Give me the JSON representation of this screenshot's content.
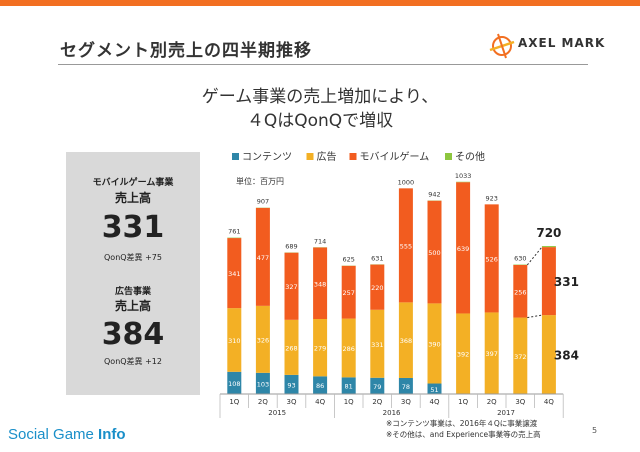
{
  "slide": {
    "title": "セグメント別売上の四半期推移",
    "brand": "AXEL MARK",
    "headline_line1": "ゲーム事業の売上増加により、",
    "headline_line2": "４QはQonQで増収",
    "page_number": "5",
    "footer_logo_part1": "Social Game ",
    "footer_logo_part2": "Info"
  },
  "summary": {
    "game_label_1": "モバイルゲーム事業",
    "game_label_2": "売上高",
    "game_value": "331",
    "game_diff": "QonQ差異 +75",
    "ad_label_1": "広告事業",
    "ad_label_2": "売上高",
    "ad_value": "384",
    "ad_diff": "QonQ差異 +12"
  },
  "colors": {
    "accent": "#f26f21",
    "contents": "#2e86a8",
    "ads": "#f3b025",
    "mobile_game": "#f25c1f",
    "other": "#8dc63f"
  },
  "chart_data": {
    "type": "bar",
    "stacked": true,
    "unit_label": "単位：百万円",
    "categories": [
      "1Q",
      "2Q",
      "3Q",
      "4Q",
      "1Q",
      "2Q",
      "3Q",
      "4Q",
      "1Q",
      "2Q",
      "3Q",
      "4Q"
    ],
    "years": [
      "2015",
      "2016",
      "2017"
    ],
    "series": [
      {
        "name": "コンテンツ",
        "color": "#2e86a8",
        "values": [
          108,
          103,
          93,
          86,
          81,
          79,
          78,
          51,
          0,
          0,
          0,
          0
        ]
      },
      {
        "name": "広告",
        "color": "#f3b025",
        "values": [
          310,
          326,
          268,
          279,
          286,
          331,
          368,
          390,
          392,
          397,
          372,
          384
        ]
      },
      {
        "name": "モバイルゲーム",
        "color": "#f25c1f",
        "values": [
          341,
          477,
          327,
          348,
          257,
          220,
          555,
          500,
          639,
          526,
          256,
          331
        ]
      },
      {
        "name": "その他",
        "color": "#8dc63f",
        "values": [
          2,
          1,
          1,
          1,
          1,
          1,
          0,
          1,
          2,
          0,
          2,
          5
        ]
      }
    ],
    "totals": [
      761,
      907,
      689,
      714,
      625,
      631,
      1000,
      942,
      1033,
      923,
      630,
      720
    ],
    "segment_labels": {
      "contents": [
        "108",
        "103",
        "93",
        "86",
        "81",
        "79",
        "78",
        "51",
        "",
        "",
        "",
        ""
      ],
      "ads": [
        "310",
        "326",
        "268",
        "279",
        "286",
        "331",
        "368",
        "390",
        "392",
        "397",
        "372",
        "384"
      ],
      "mobile_game": [
        "341",
        "477",
        "327",
        "348",
        "257",
        "220",
        "555",
        "500",
        "639",
        "526",
        "256",
        "331"
      ]
    },
    "highlight": {
      "total": "720",
      "mobile_game": "331",
      "ads": "384"
    },
    "notes": [
      "※コンテンツ事業は、2016年４Qに事業譲渡",
      "※その他は、and Experience事業等の売上高"
    ],
    "ylim": [
      0,
      1100
    ]
  }
}
